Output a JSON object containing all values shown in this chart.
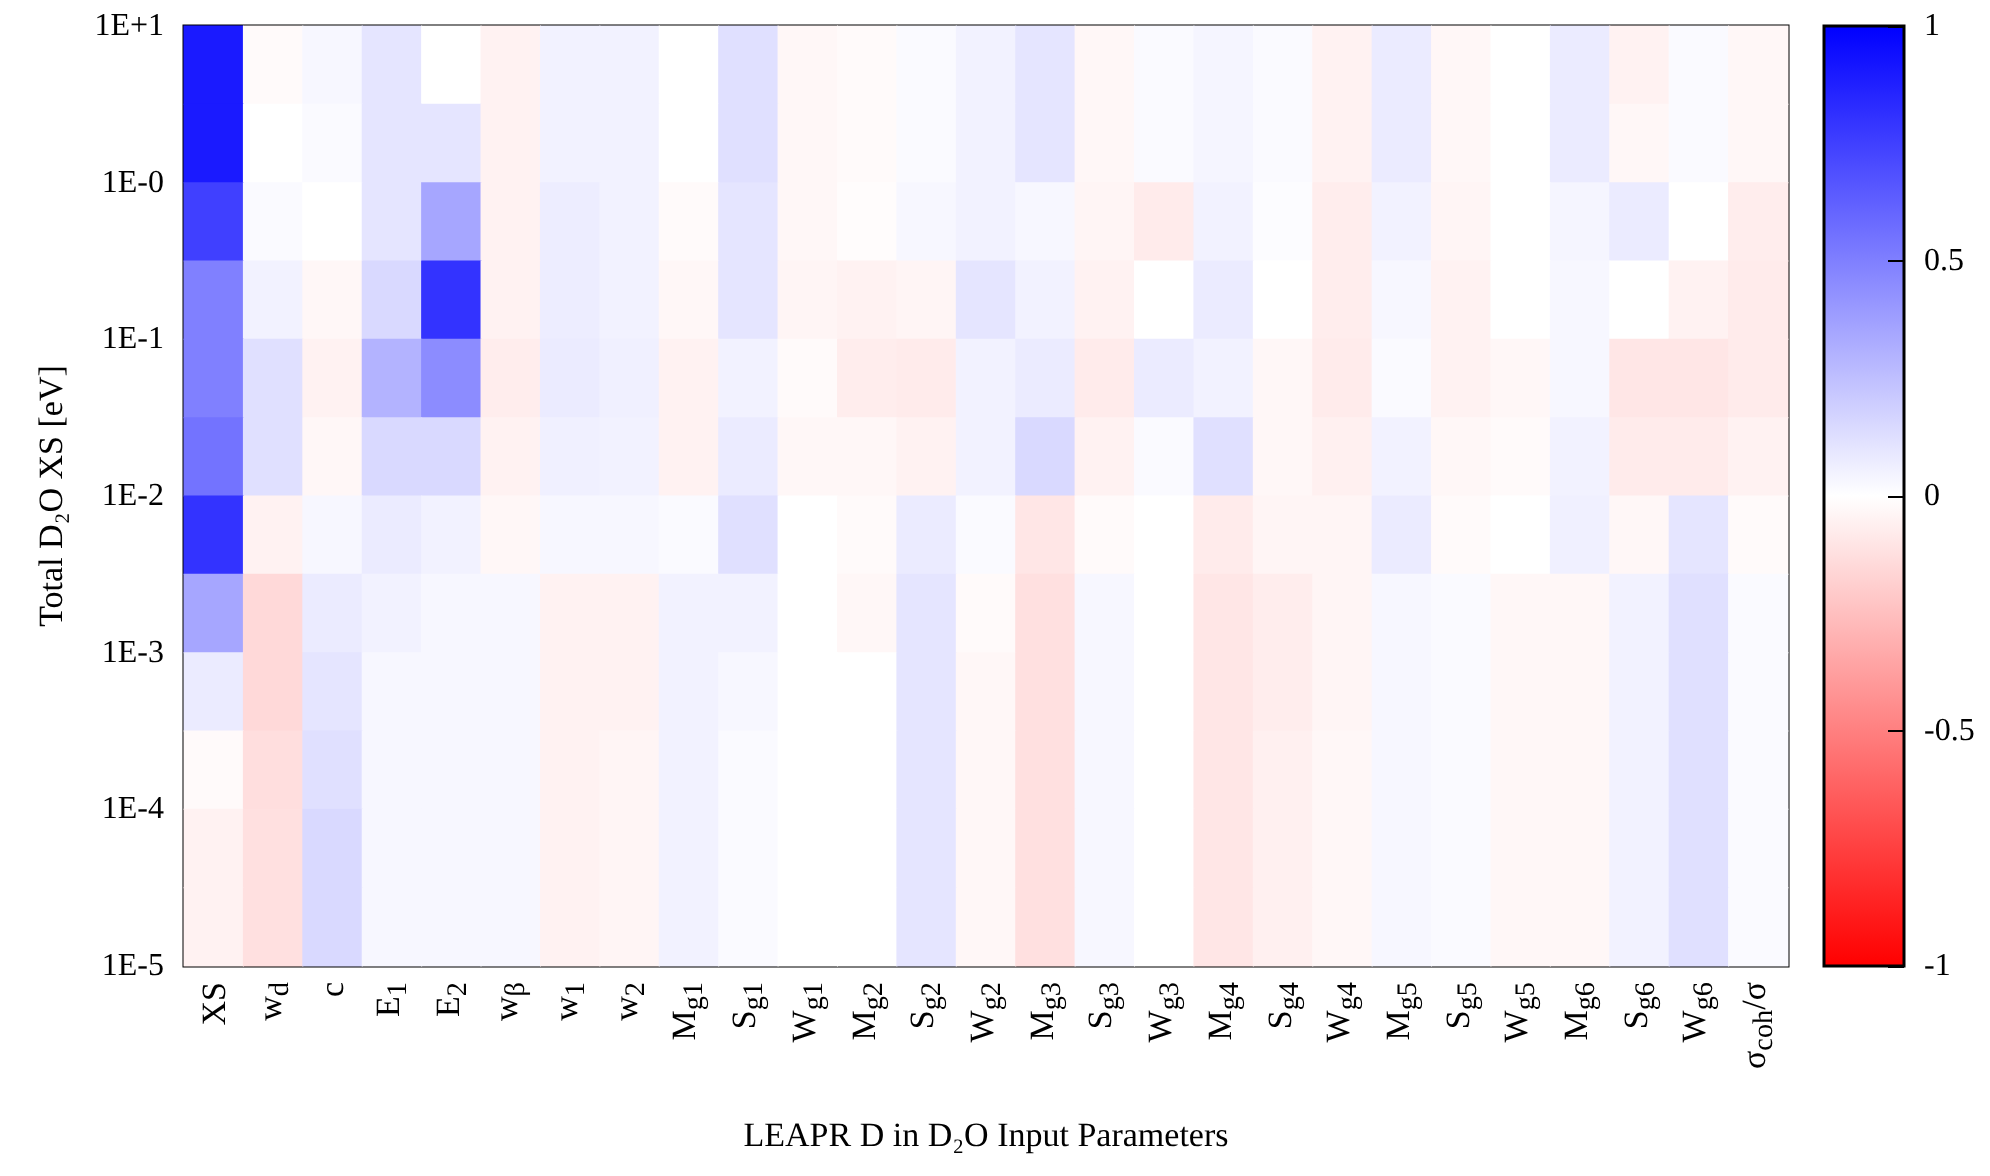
{
  "chart_data": {
    "type": "heatmap",
    "xlabel": "LEAPR D in D₂O Input Parameters",
    "ylabel": "Total D₂O XS [eV]",
    "categories": [
      "XS",
      "w$_{d}$",
      "c",
      "E$_{1}$",
      "E$_{2}$",
      "w$_{β}$",
      "w$_{1}$",
      "w$_{2}$",
      "M$_{g1}$",
      "S$_{g1}$",
      "W$_{g1}$",
      "M$_{g2}$",
      "S$_{g2}$",
      "W$_{g2}$",
      "M$_{g3}$",
      "S$_{g3}$",
      "W$_{g3}$",
      "M$_{g4}$",
      "S$_{g4}$",
      "W$_{g4}$",
      "M$_{g5}$",
      "S$_{g5}$",
      "W$_{g5}$",
      "M$_{g6}$",
      "S$_{g6}$",
      "W$_{g6}$",
      "σ$_{coh}$/σ"
    ],
    "log": "y",
    "ylim": [
      1e-05,
      10
    ],
    "yticks": [
      {
        "value": 10,
        "label": "1E+1"
      },
      {
        "value": 1,
        "label": "1E-0"
      },
      {
        "value": 0.1,
        "label": "1E-1"
      },
      {
        "value": 0.01,
        "label": "1E-2"
      },
      {
        "value": 0.001,
        "label": "1E-3"
      },
      {
        "value": 0.0001,
        "label": "1E-4"
      },
      {
        "value": 1e-05,
        "label": "1E-5"
      }
    ],
    "clim": [
      -1,
      1
    ],
    "cticks": [
      -1,
      -0.5,
      0,
      0.5,
      1
    ],
    "cells": [
      [
        0.9,
        -0.02,
        0.03,
        0.1,
        0,
        -0.05,
        0.05,
        0.05,
        0,
        0.12,
        -0.03,
        -0.02,
        0.02,
        0.05,
        0.1,
        -0.03,
        0.02,
        0.04,
        0.02,
        -0.05,
        0.08,
        -0.03,
        0,
        0.08,
        -0.05,
        0.02,
        -0.03
      ],
      [
        0.9,
        0,
        0.02,
        0.1,
        0.1,
        -0.05,
        0.05,
        0.05,
        0,
        0.12,
        -0.03,
        -0.02,
        0.02,
        0.05,
        0.1,
        -0.03,
        0.02,
        0.04,
        0.02,
        -0.05,
        0.08,
        -0.03,
        0,
        0.08,
        -0.03,
        0.02,
        -0.03
      ],
      [
        0.75,
        0.02,
        0,
        0.1,
        0.35,
        -0.05,
        0.07,
        0.05,
        -0.02,
        0.1,
        -0.03,
        -0.01,
        0.03,
        0.05,
        0.03,
        -0.04,
        -0.08,
        0.05,
        0.01,
        -0.07,
        0.05,
        -0.04,
        0,
        0.04,
        0.08,
        0,
        -0.07
      ],
      [
        0.5,
        0.05,
        -0.03,
        0.15,
        0.8,
        -0.05,
        0.07,
        0.05,
        -0.03,
        0.1,
        -0.04,
        -0.05,
        -0.04,
        0.1,
        0.05,
        -0.05,
        0,
        0.08,
        0,
        -0.07,
        0.03,
        -0.05,
        0,
        0.03,
        0,
        -0.05,
        -0.08
      ],
      [
        0.5,
        0.12,
        -0.05,
        0.3,
        0.45,
        -0.07,
        0.08,
        0.06,
        -0.05,
        0.05,
        -0.02,
        -0.07,
        -0.08,
        0.05,
        0.08,
        -0.08,
        0.08,
        0.05,
        -0.03,
        -0.08,
        0.02,
        -0.05,
        -0.03,
        0.03,
        -0.1,
        -0.1,
        -0.08
      ],
      [
        0.55,
        0.12,
        -0.03,
        0.15,
        0.15,
        -0.05,
        0.06,
        0.05,
        -0.05,
        0.08,
        -0.03,
        -0.03,
        -0.05,
        0.05,
        0.15,
        -0.05,
        0.02,
        0.12,
        -0.03,
        -0.06,
        0.05,
        -0.03,
        -0.02,
        0.05,
        -0.08,
        -0.08,
        -0.05
      ],
      [
        0.8,
        -0.05,
        0.03,
        0.08,
        0.05,
        -0.03,
        0.03,
        0.03,
        0.02,
        0.12,
        0,
        -0.02,
        0.08,
        0.02,
        -0.1,
        -0.02,
        0,
        -0.08,
        -0.04,
        -0.04,
        0.08,
        -0.02,
        0,
        0.06,
        -0.03,
        0.1,
        -0.02
      ],
      [
        0.35,
        -0.15,
        0.08,
        0.05,
        0.03,
        0.03,
        -0.05,
        -0.05,
        0.05,
        0.05,
        0,
        -0.03,
        0.1,
        -0.02,
        -0.12,
        0.03,
        0,
        -0.1,
        -0.07,
        -0.04,
        0.03,
        0.02,
        -0.03,
        -0.03,
        0.05,
        0.12,
        0.02
      ],
      [
        0.08,
        -0.15,
        0.1,
        0.03,
        0.03,
        0.03,
        -0.05,
        -0.05,
        0.05,
        0.03,
        0,
        0,
        0.1,
        -0.03,
        -0.12,
        0.03,
        0,
        -0.1,
        -0.07,
        -0.04,
        0.03,
        0.02,
        -0.03,
        -0.03,
        0.05,
        0.12,
        0.02
      ],
      [
        -0.02,
        -0.13,
        0.12,
        0.03,
        0.03,
        0.03,
        -0.05,
        -0.04,
        0.05,
        0.02,
        0,
        0,
        0.1,
        -0.03,
        -0.12,
        0.03,
        0,
        -0.1,
        -0.06,
        -0.03,
        0.03,
        0.02,
        -0.03,
        -0.03,
        0.05,
        0.12,
        0.02
      ],
      [
        -0.05,
        -0.12,
        0.15,
        0.03,
        0.03,
        0.03,
        -0.05,
        -0.04,
        0.05,
        0.02,
        0,
        0,
        0.1,
        -0.03,
        -0.12,
        0.03,
        0,
        -0.1,
        -0.06,
        -0.03,
        0.03,
        0.02,
        -0.03,
        -0.03,
        0.05,
        0.12,
        0.02
      ],
      [
        -0.05,
        -0.12,
        0.15,
        0.03,
        0.03,
        0.03,
        -0.05,
        -0.04,
        0.05,
        0.02,
        0,
        0,
        0.1,
        -0.03,
        -0.12,
        0.03,
        0,
        -0.1,
        -0.06,
        -0.03,
        0.03,
        0.02,
        -0.03,
        -0.03,
        0.05,
        0.12,
        0.02
      ]
    ]
  }
}
